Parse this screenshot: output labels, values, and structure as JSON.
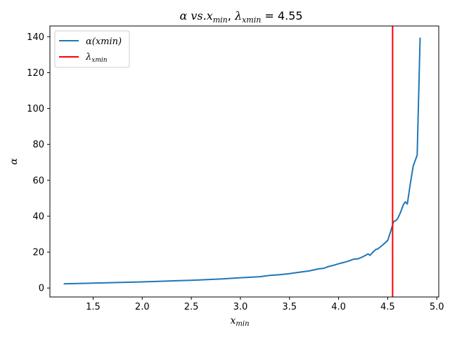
{
  "chart_data": {
    "type": "line",
    "title": "α vs.x_min, λ_xmin = 4.55",
    "title_parts": {
      "a": "α vs.",
      "b": "x",
      "b_sub": "min",
      "c": ", ",
      "d": "λ",
      "d_sub": "xmin",
      "e": " = 4.55"
    },
    "xlabel": {
      "main": "x",
      "sub": "min"
    },
    "ylabel": "α",
    "xlim": [
      1.06,
      5.02
    ],
    "ylim": [
      -5,
      146
    ],
    "xticks": [
      1.5,
      2.0,
      2.5,
      3.0,
      3.5,
      4.0,
      4.5,
      5.0
    ],
    "xtick_labels": [
      "1.5",
      "2.0",
      "2.5",
      "3.0",
      "3.5",
      "4.0",
      "4.5",
      "5.0"
    ],
    "yticks": [
      0,
      20,
      40,
      60,
      80,
      100,
      120,
      140
    ],
    "ytick_labels": [
      "0",
      "20",
      "40",
      "60",
      "80",
      "100",
      "120",
      "140"
    ],
    "series": [
      {
        "name": "α(xmin)",
        "color": "#1f77b4",
        "x": [
          1.2,
          1.5,
          2.0,
          2.5,
          2.8,
          3.0,
          3.2,
          3.3,
          3.4,
          3.5,
          3.6,
          3.7,
          3.8,
          3.85,
          3.9,
          3.95,
          4.0,
          4.05,
          4.1,
          4.15,
          4.2,
          4.25,
          4.3,
          4.32,
          4.35,
          4.38,
          4.4,
          4.45,
          4.5,
          4.53,
          4.56,
          4.58,
          4.6,
          4.63,
          4.66,
          4.68,
          4.7,
          4.73,
          4.76,
          4.8,
          4.83
        ],
        "values": [
          2.3,
          2.7,
          3.4,
          4.3,
          5.0,
          5.7,
          6.3,
          7.0,
          7.4,
          8.0,
          8.8,
          9.5,
          10.7,
          11.0,
          12.0,
          12.7,
          13.5,
          14.2,
          15.0,
          16.0,
          16.3,
          17.5,
          19.0,
          18.2,
          20.0,
          21.5,
          21.8,
          24.0,
          26.5,
          31.5,
          37.0,
          37.5,
          38.5,
          42.0,
          46.5,
          48.0,
          46.8,
          58.0,
          68.0,
          74.0,
          139.5
        ]
      },
      {
        "name": "λ_xmin",
        "color": "#ff0000",
        "vline_x": 4.55
      }
    ],
    "legend": {
      "position": "top-left",
      "entries": [
        {
          "main": "α(xmin)",
          "sub": ""
        },
        {
          "main": "λ",
          "sub": "xmin"
        }
      ]
    }
  }
}
